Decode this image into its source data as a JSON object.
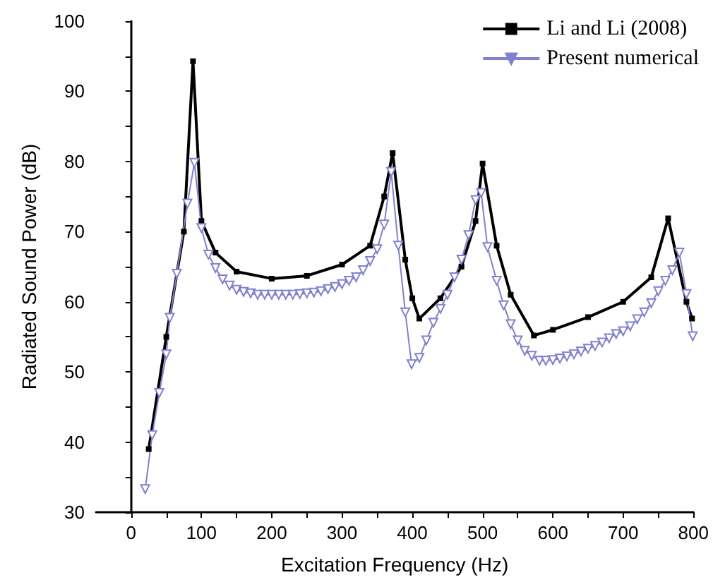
{
  "chart_data": {
    "type": "line",
    "xlabel": "Excitation Frequency (Hz)",
    "ylabel": "Radiated Sound Power (dB)",
    "xlim": [
      -50,
      800
    ],
    "xticks": [
      0,
      100,
      200,
      300,
      400,
      500,
      600,
      700,
      800
    ],
    "ylim": [
      30,
      100
    ],
    "yticks": [
      30,
      40,
      50,
      60,
      70,
      80,
      90,
      100
    ],
    "grid": false,
    "legend": "top right",
    "series": [
      {
        "name": "Li and Li (2008)",
        "color": "#000000",
        "marker": "square",
        "x": [
          25,
          50,
          75,
          88,
          100,
          120,
          150,
          200,
          250,
          300,
          340,
          360,
          372,
          390,
          400,
          410,
          440,
          470,
          490,
          500,
          520,
          540,
          573,
          600,
          650,
          700,
          740,
          764,
          790,
          798
        ],
        "values": [
          39,
          55,
          70,
          94.3,
          71.5,
          67,
          64.3,
          63.3,
          63.7,
          65.3,
          68,
          75,
          81.2,
          66,
          60.5,
          57.6,
          60.5,
          65,
          71.5,
          79.7,
          68,
          61,
          55.2,
          56,
          57.8,
          60,
          63.5,
          71.9,
          60,
          57.6
        ]
      },
      {
        "name": "Present numerical",
        "color": "#8080d0",
        "marker": "triangle",
        "x": [
          20,
          30,
          40,
          50,
          55,
          65,
          80,
          90,
          100,
          110,
          120,
          130,
          140,
          150,
          160,
          170,
          180,
          190,
          200,
          210,
          220,
          230,
          240,
          250,
          260,
          270,
          280,
          290,
          300,
          310,
          320,
          330,
          340,
          350,
          360,
          370,
          380,
          390,
          399,
          410,
          420,
          430,
          440,
          450,
          460,
          470,
          480,
          490,
          498,
          507,
          520,
          530,
          540,
          550,
          560,
          570,
          581,
          590,
          600,
          610,
          620,
          630,
          640,
          650,
          660,
          670,
          680,
          690,
          700,
          710,
          720,
          730,
          740,
          750,
          760,
          770,
          780,
          790,
          799
        ],
        "values": [
          33.3,
          41,
          47,
          52.5,
          57.7,
          64,
          74,
          79.8,
          70.5,
          66.7,
          64.8,
          63.2,
          62.3,
          61.7,
          61.4,
          61.2,
          61,
          61,
          61,
          61,
          61,
          61,
          61.1,
          61.2,
          61.3,
          61.5,
          61.8,
          62.1,
          62.5,
          63,
          63.5,
          64.5,
          65.8,
          67.5,
          71,
          78.5,
          68,
          58.5,
          51.1,
          52,
          54.5,
          57,
          59,
          61,
          63.5,
          66,
          69.5,
          74.5,
          75.5,
          67.8,
          63,
          59.5,
          56.8,
          54.5,
          53,
          52.3,
          51.6,
          51.6,
          51.7,
          51.9,
          52.2,
          52.5,
          52.9,
          53.3,
          53.7,
          54.2,
          54.8,
          55.4,
          55.8,
          56.5,
          57.5,
          58.5,
          59.8,
          61.5,
          63,
          64.5,
          67,
          61.1,
          55.1
        ]
      }
    ]
  }
}
